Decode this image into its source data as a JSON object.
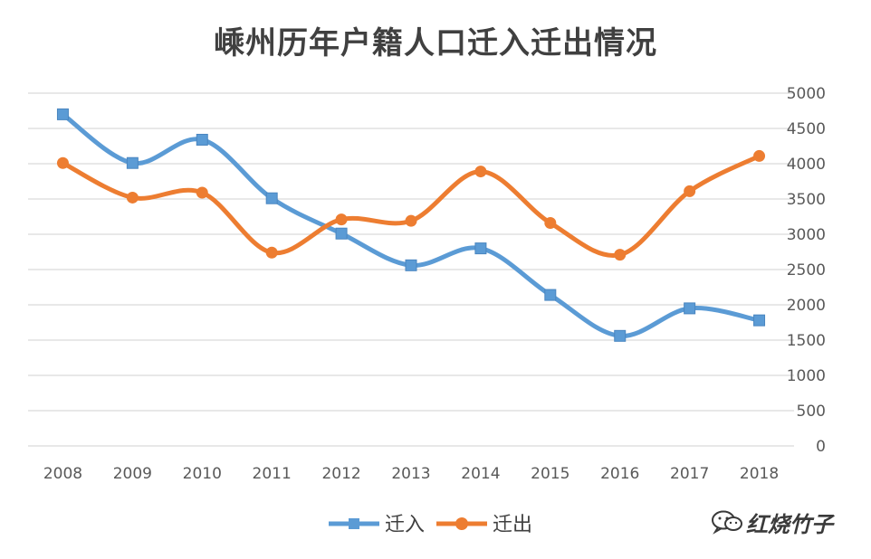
{
  "chart_data": {
    "type": "line",
    "title": "嵊州历年户籍人口迁入迁出情况",
    "categories": [
      "2008",
      "2009",
      "2010",
      "2011",
      "2012",
      "2013",
      "2014",
      "2015",
      "2016",
      "2017",
      "2018"
    ],
    "series": [
      {
        "name": "迁入",
        "color": "#5b9bd5",
        "marker": "square",
        "values": [
          4700,
          4010,
          4340,
          3510,
          3010,
          2560,
          2800,
          2140,
          1560,
          1950,
          1780
        ]
      },
      {
        "name": "迁出",
        "color": "#ed7d31",
        "marker": "circle",
        "values": [
          4010,
          3520,
          3590,
          2740,
          3210,
          3190,
          3890,
          3160,
          2710,
          3610,
          4110
        ]
      }
    ],
    "ylim": [
      0,
      5000
    ],
    "yticks": [
      "0",
      "500",
      "1000",
      "1500",
      "2000",
      "2500",
      "3000",
      "3500",
      "4000",
      "4500",
      "5000"
    ],
    "y_axis_side": "right",
    "grid": true,
    "legend_position": "bottom",
    "smooth": true
  },
  "watermark": {
    "text": "红烧竹子",
    "icon": "wechat-icon"
  }
}
